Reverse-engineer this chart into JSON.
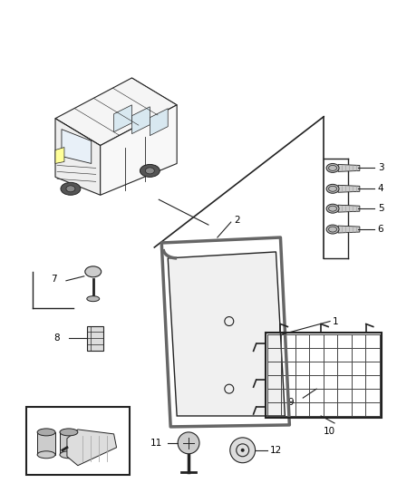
{
  "background_color": "#ffffff",
  "fig_width": 4.38,
  "fig_height": 5.33,
  "dpi": 100,
  "label_fontsize": 7.5,
  "line_color": "#222222",
  "part_color": "#e0e0e0",
  "seal_color": "#999999"
}
